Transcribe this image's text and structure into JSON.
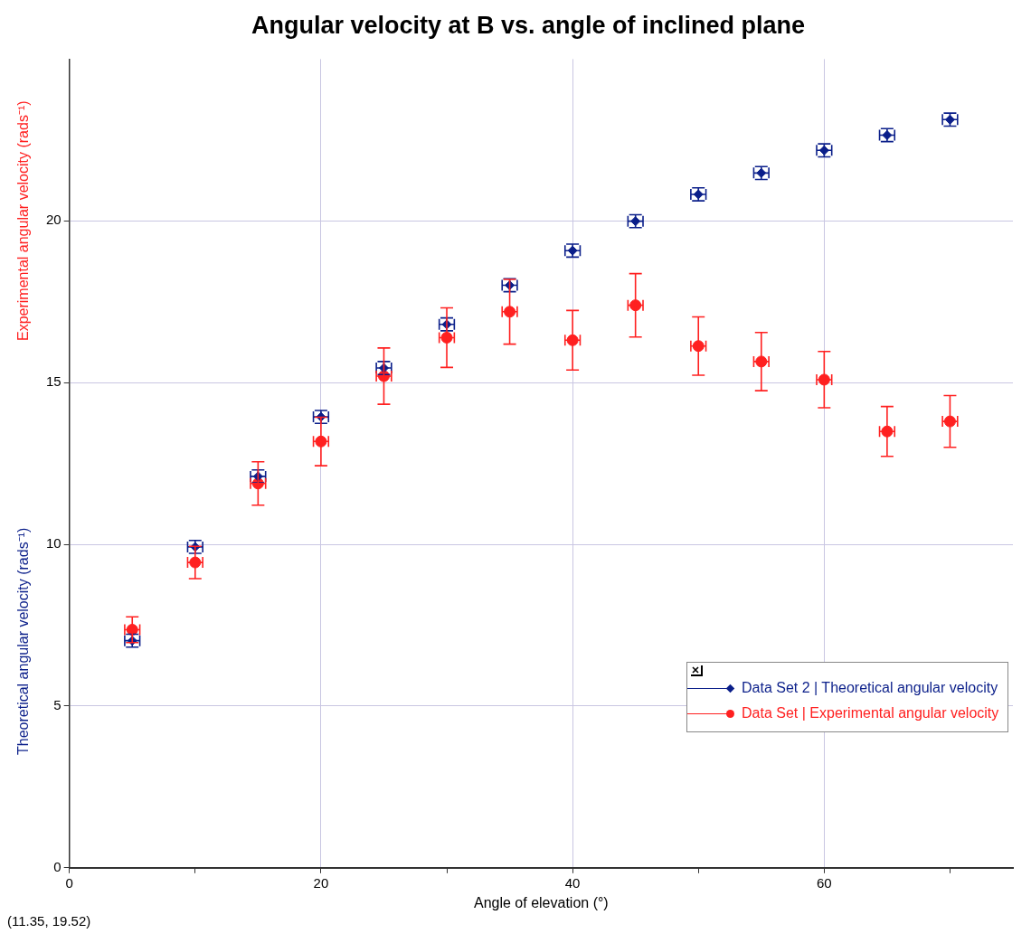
{
  "chart_data": {
    "type": "scatter",
    "title": "Angular velocity at B vs. angle of inclined plane",
    "xlabel": "Angle of elevation (°)",
    "ylabel": "Theoretical angular velocity (rads⁻¹)",
    "y2label": "Experimental angular velocity (rads⁻¹)",
    "annotations": [
      "(11.35, 19.52)"
    ],
    "x": [
      5,
      10,
      15,
      20,
      25,
      30,
      35,
      40,
      45,
      50,
      55,
      60,
      65,
      70
    ],
    "xlim": [
      0,
      75
    ],
    "xticks": [
      0,
      {
        "value": 10,
        "label": null
      },
      20,
      {
        "value": 30,
        "label": null
      },
      40,
      {
        "value": 50,
        "label": null
      },
      60,
      {
        "value": 70,
        "label": null
      }
    ],
    "ylim": [
      0,
      25
    ],
    "yticks": [
      0,
      5,
      10,
      15,
      20
    ],
    "grid": true,
    "legend": "bottom right",
    "series": [
      {
        "name": "Data Set 2 | Theoretical angular velocity",
        "color": "#0b1f8a",
        "marker": "diamond",
        "values": [
          7.02,
          9.92,
          12.1,
          13.94,
          15.45,
          16.8,
          18.01,
          19.08,
          19.99,
          20.82,
          21.48,
          22.18,
          22.65,
          23.13
        ],
        "errors": [
          0.2,
          0.2,
          0.2,
          0.2,
          0.2,
          0.2,
          0.2,
          0.2,
          0.2,
          0.2,
          0.2,
          0.2,
          0.2,
          0.2
        ],
        "xerrors": [
          0.6,
          0.6,
          0.6,
          0.6,
          0.6,
          0.6,
          0.6,
          0.6,
          0.6,
          0.6,
          0.6,
          0.6,
          0.6,
          0.6
        ]
      },
      {
        "name": "Data Set | Experimental angular velocity",
        "color": "#ff2020",
        "marker": "circle",
        "values": [
          7.36,
          9.44,
          11.88,
          13.18,
          15.2,
          16.39,
          17.19,
          16.31,
          17.39,
          16.13,
          15.65,
          15.09,
          13.49,
          13.8
        ],
        "errors": [
          0.4,
          0.5,
          0.67,
          0.75,
          0.87,
          0.92,
          1.0,
          0.92,
          0.98,
          0.9,
          0.9,
          0.87,
          0.77,
          0.8
        ],
        "xerrors": [
          0.6,
          0.6,
          0.6,
          0.6,
          0.6,
          0.6,
          0.6,
          0.6,
          0.6,
          0.6,
          0.6,
          0.6,
          0.6,
          0.6
        ]
      }
    ]
  }
}
